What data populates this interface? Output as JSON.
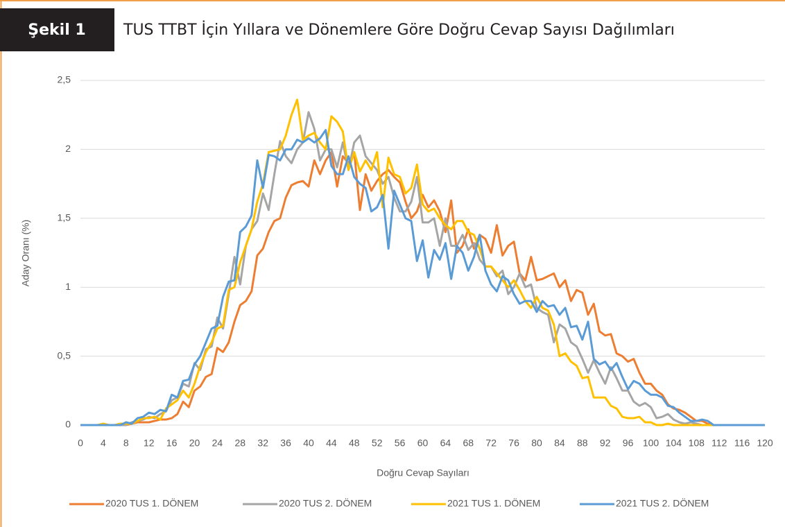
{
  "figure_label": "Şekil 1",
  "chart_data": {
    "type": "line",
    "title": "TUS TTBT İçin Yıllara ve Dönemlere Göre Doğru Cevap Sayısı Dağılımları",
    "x_label": "Doğru Cevap Sayıları",
    "y_label": "Aday Oranı (%)",
    "xlim": [
      0,
      120
    ],
    "xticks": [
      0,
      4,
      8,
      12,
      16,
      20,
      24,
      28,
      32,
      36,
      40,
      44,
      48,
      52,
      56,
      60,
      64,
      68,
      72,
      76,
      80,
      84,
      88,
      92,
      96,
      100,
      104,
      108,
      112,
      116,
      120
    ],
    "ylim": [
      0,
      2.5
    ],
    "yticks": [
      0,
      {
        "value": 0.5,
        "label": "0,5"
      },
      1,
      {
        "value": 1.5,
        "label": "1,5"
      },
      2,
      {
        "value": 2.5,
        "label": "2,5"
      }
    ],
    "grid": true,
    "legend": "bottom",
    "x": [
      0,
      1,
      2,
      3,
      4,
      5,
      6,
      7,
      8,
      9,
      10,
      11,
      12,
      13,
      14,
      15,
      16,
      17,
      18,
      19,
      20,
      21,
      22,
      23,
      24,
      25,
      26,
      27,
      28,
      29,
      30,
      31,
      32,
      33,
      34,
      35,
      36,
      37,
      38,
      39,
      40,
      41,
      42,
      43,
      44,
      45,
      46,
      47,
      48,
      49,
      50,
      51,
      52,
      53,
      54,
      55,
      56,
      57,
      58,
      59,
      60,
      61,
      62,
      63,
      64,
      65,
      66,
      67,
      68,
      69,
      70,
      71,
      72,
      73,
      74,
      75,
      76,
      77,
      78,
      79,
      80,
      81,
      82,
      83,
      84,
      85,
      86,
      87,
      88,
      89,
      90,
      91,
      92,
      93,
      94,
      95,
      96,
      97,
      98,
      99,
      100,
      101,
      102,
      103,
      104,
      105,
      106,
      107,
      108,
      109,
      110,
      111,
      112,
      113,
      114,
      115,
      116,
      117,
      118,
      119,
      120
    ],
    "series": [
      {
        "name": "2020 TUS 1. DÖNEM",
        "color": "#ed7d31",
        "values": [
          0,
          0,
          0,
          0,
          0,
          0,
          0,
          0,
          0,
          0.01,
          0.02,
          0.02,
          0.02,
          0.03,
          0.04,
          0.04,
          0.05,
          0.08,
          0.17,
          0.13,
          0.25,
          0.28,
          0.35,
          0.37,
          0.56,
          0.53,
          0.6,
          0.75,
          0.87,
          0.9,
          0.97,
          1.23,
          1.28,
          1.4,
          1.48,
          1.5,
          1.65,
          1.74,
          1.76,
          1.77,
          1.73,
          1.92,
          1.82,
          1.92,
          1.98,
          1.73,
          1.95,
          1.9,
          1.98,
          1.56,
          1.82,
          1.7,
          1.77,
          1.82,
          1.85,
          1.8,
          1.76,
          1.62,
          1.5,
          1.55,
          1.67,
          1.58,
          1.63,
          1.55,
          1.4,
          1.63,
          1.25,
          1.3,
          1.42,
          1.28,
          1.38,
          1.35,
          1.25,
          1.45,
          1.23,
          1.3,
          1.33,
          1.1,
          1.05,
          1.22,
          1.05,
          1.06,
          1.08,
          1.1,
          1.0,
          1.05,
          0.9,
          0.98,
          0.96,
          0.8,
          0.88,
          0.68,
          0.65,
          0.66,
          0.52,
          0.5,
          0.46,
          0.48,
          0.38,
          0.3,
          0.3,
          0.25,
          0.22,
          0.15,
          0.12,
          0.11,
          0.09,
          0.06,
          0.03,
          0.03,
          0.01,
          0,
          0,
          0,
          0,
          0,
          0,
          0,
          0,
          0,
          0
        ]
      },
      {
        "name": "2020 TUS 2. DÖNEM",
        "color": "#a5a5a5",
        "values": [
          0,
          0,
          0,
          0,
          0,
          0,
          0,
          0,
          0,
          0.02,
          0.03,
          0.04,
          0.06,
          0.05,
          0.08,
          0.1,
          0.18,
          0.2,
          0.3,
          0.28,
          0.45,
          0.4,
          0.55,
          0.57,
          0.78,
          0.7,
          0.95,
          1.22,
          1.02,
          1.3,
          1.42,
          1.48,
          1.68,
          1.56,
          1.82,
          2.06,
          1.95,
          1.9,
          2.0,
          2.05,
          2.27,
          2.15,
          1.92,
          2.0,
          2.0,
          1.87,
          2.05,
          1.85,
          2.05,
          2.1,
          1.95,
          1.9,
          1.85,
          1.75,
          1.8,
          1.65,
          1.55,
          1.55,
          1.62,
          1.8,
          1.47,
          1.47,
          1.5,
          1.3,
          1.5,
          1.3,
          1.3,
          1.38,
          1.27,
          1.32,
          1.2,
          1.15,
          1.15,
          1.08,
          1.12,
          0.95,
          1.0,
          1.1,
          1.0,
          1.02,
          0.85,
          0.82,
          0.8,
          0.6,
          0.73,
          0.7,
          0.6,
          0.57,
          0.48,
          0.38,
          0.47,
          0.38,
          0.3,
          0.42,
          0.34,
          0.25,
          0.25,
          0.17,
          0.14,
          0.16,
          0.13,
          0.05,
          0.06,
          0.08,
          0.04,
          0.02,
          0.01,
          0.02,
          0.01,
          0,
          0,
          0,
          0,
          0,
          0,
          0,
          0,
          0,
          0,
          0,
          0
        ]
      },
      {
        "name": "2021 TUS 1. DÖNEM",
        "color": "#ffc000",
        "values": [
          0,
          0,
          0,
          0,
          0.01,
          0,
          0,
          0.01,
          0.01,
          0.01,
          0.03,
          0.05,
          0.05,
          0.06,
          0.04,
          0.12,
          0.15,
          0.18,
          0.25,
          0.2,
          0.3,
          0.43,
          0.53,
          0.6,
          0.7,
          0.72,
          0.98,
          1.0,
          1.18,
          1.3,
          1.42,
          1.62,
          1.75,
          1.98,
          1.99,
          2.0,
          2.1,
          2.25,
          2.36,
          2.07,
          2.1,
          2.12,
          2.05,
          2.0,
          2.24,
          2.2,
          2.13,
          1.85,
          1.98,
          1.84,
          1.92,
          1.85,
          1.98,
          1.58,
          1.94,
          1.82,
          1.8,
          1.68,
          1.72,
          1.89,
          1.6,
          1.55,
          1.57,
          1.5,
          1.45,
          1.42,
          1.48,
          1.48,
          1.4,
          1.38,
          1.28,
          1.15,
          1.15,
          1.1,
          1.05,
          1.0,
          1.05,
          0.98,
          0.9,
          0.85,
          0.93,
          0.85,
          0.83,
          0.73,
          0.5,
          0.52,
          0.46,
          0.43,
          0.34,
          0.35,
          0.2,
          0.2,
          0.2,
          0.14,
          0.12,
          0.06,
          0.05,
          0.05,
          0.06,
          0.02,
          0.02,
          0,
          0,
          0.01,
          0,
          0,
          0,
          0,
          0,
          0,
          0,
          0,
          0,
          0,
          0,
          0,
          0,
          0,
          0,
          0,
          0
        ]
      },
      {
        "name": "2021 TUS 2. DÖNEM",
        "color": "#5b9bd5",
        "values": [
          0,
          0,
          0,
          0,
          0,
          0,
          0,
          0,
          0.02,
          0.01,
          0.05,
          0.06,
          0.09,
          0.08,
          0.11,
          0.1,
          0.22,
          0.2,
          0.32,
          0.33,
          0.44,
          0.5,
          0.6,
          0.7,
          0.72,
          0.93,
          1.04,
          1.05,
          1.4,
          1.44,
          1.52,
          1.92,
          1.72,
          1.96,
          1.95,
          1.92,
          2.0,
          2.0,
          2.07,
          2.05,
          2.08,
          2.05,
          2.08,
          2.14,
          1.88,
          1.82,
          1.82,
          1.95,
          1.8,
          1.75,
          1.72,
          1.55,
          1.58,
          1.67,
          1.28,
          1.7,
          1.6,
          1.5,
          1.48,
          1.19,
          1.34,
          1.07,
          1.27,
          1.2,
          1.32,
          1.06,
          1.3,
          1.25,
          1.12,
          1.22,
          1.38,
          1.12,
          1.02,
          0.97,
          1.08,
          1.05,
          0.95,
          0.88,
          0.9,
          0.9,
          0.82,
          0.9,
          0.86,
          0.87,
          0.8,
          0.85,
          0.71,
          0.72,
          0.62,
          0.75,
          0.48,
          0.44,
          0.46,
          0.4,
          0.45,
          0.35,
          0.26,
          0.32,
          0.3,
          0.25,
          0.22,
          0.22,
          0.2,
          0.14,
          0.13,
          0.09,
          0.06,
          0.03,
          0.03,
          0.04,
          0.03,
          0,
          0,
          0,
          0,
          0,
          0,
          0,
          0,
          0,
          0
        ]
      }
    ]
  }
}
